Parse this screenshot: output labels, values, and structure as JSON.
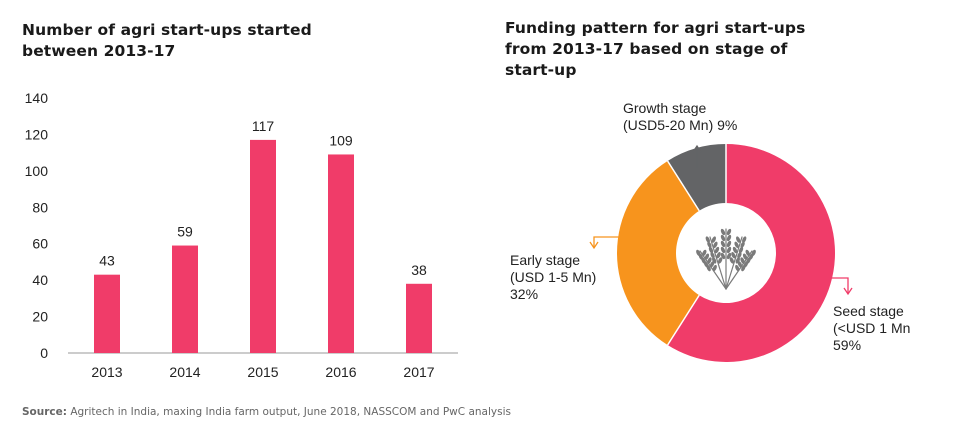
{
  "bar_title": "Number of agri start-ups started between 2013-17",
  "donut_title": "Funding pattern for agri start-ups from 2013-17 based on stage of start-up",
  "source": {
    "label": "Source:",
    "text": "Agritech in India, maxing India farm output, June 2018, NASSCOM and PwC analysis"
  },
  "colors": {
    "bar": "#f03c69",
    "seed": "#f03c69",
    "early": "#f7941d",
    "growth": "#636466"
  },
  "chart_data": [
    {
      "type": "bar",
      "title": "Number of agri start-ups started between 2013-17",
      "categories": [
        "2013",
        "2014",
        "2015",
        "2016",
        "2017"
      ],
      "values": [
        43,
        59,
        117,
        109,
        38
      ],
      "data_labels": [
        "43",
        "59",
        "117",
        "109",
        "38"
      ],
      "yticks": [
        "0",
        "20",
        "40",
        "60",
        "80",
        "100",
        "120",
        "140"
      ],
      "ylim": [
        0,
        140
      ],
      "grid": false
    },
    {
      "type": "pie",
      "subtype": "donut",
      "title": "Funding pattern for agri start-ups from 2013-17 based on stage of start-up",
      "slices": [
        {
          "key": "seed",
          "label": "Seed stage\n(<USD 1 Mn\n59%",
          "value": 59
        },
        {
          "key": "early",
          "label": "Early stage\n(USD 1-5 Mn)\n32%",
          "value": 32
        },
        {
          "key": "growth",
          "label": "Growth stage\n(USD5-20 Mn) 9%",
          "value": 9
        }
      ],
      "center_icon": "wheat-icon"
    }
  ]
}
